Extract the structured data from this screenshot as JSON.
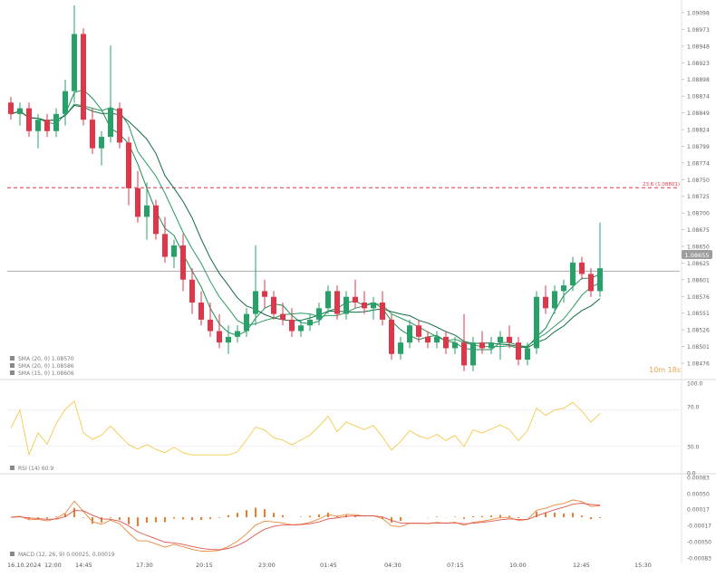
{
  "colors": {
    "up": "#26a269",
    "down": "#e0364a",
    "sma_short": "#1e8f57",
    "sma_mid": "#2a9d62",
    "sma_long": "#146b44",
    "rsi": "#f2c94c",
    "macd_line": "#e9893c",
    "signal_line": "#e0564f",
    "hist": "#f07a28",
    "fib": "#e0364a",
    "current": "#9e9e9e",
    "timer": "#e8a34a"
  },
  "legend": [
    {
      "label": "SMA (20, 0) 1.08570"
    },
    {
      "label": "SMA (20, 0) 1.08586"
    },
    {
      "label": "SMA (15, 0) 1.08606"
    }
  ],
  "fib_label": "23.6 (1.08801)",
  "current_price_label": "1.08655",
  "timer_label": "10m 18s",
  "rsi_legend": "RSI (14) 60.9",
  "macd_legend": "MACD (12, 26, 9) 0.00025, 0.00019",
  "chart_data": [
    {
      "type": "candlestick",
      "ylim": [
        1.0847,
        1.0912
      ],
      "yticks": [
        "1.09098",
        "1.08973",
        "1.08948",
        "1.08923",
        "1.08898",
        "1.08874",
        "1.08849",
        "1.08824",
        "1.08799",
        "1.08774",
        "1.08750",
        "1.08725",
        "1.08700",
        "1.08675",
        "1.08650",
        "1.08625",
        "1.08601",
        "1.08576",
        "1.08551",
        "1.08526",
        "1.08501",
        "1.08476"
      ],
      "fib_level": 1.08801,
      "current_price": 1.08655,
      "candles": [
        [
          1.0895,
          1.0896,
          1.0892,
          1.0893
        ],
        [
          1.0893,
          1.0895,
          1.0891,
          1.0894
        ],
        [
          1.0894,
          1.0895,
          1.0889,
          1.089
        ],
        [
          1.089,
          1.0893,
          1.0887,
          1.0892
        ],
        [
          1.0892,
          1.0893,
          1.0889,
          1.089
        ],
        [
          1.089,
          1.0894,
          1.0889,
          1.0893
        ],
        [
          1.0893,
          1.0899,
          1.0891,
          1.0897
        ],
        [
          1.0897,
          1.0912,
          1.0895,
          1.0907
        ],
        [
          1.0907,
          1.0908,
          1.0891,
          1.0892
        ],
        [
          1.0892,
          1.0894,
          1.0886,
          1.0887
        ],
        [
          1.0887,
          1.089,
          1.0884,
          1.0889
        ],
        [
          1.0889,
          1.0905,
          1.0888,
          1.0894
        ],
        [
          1.0894,
          1.0895,
          1.0887,
          1.0888
        ],
        [
          1.0888,
          1.0889,
          1.0877,
          1.088
        ],
        [
          1.088,
          1.0883,
          1.0874,
          1.0875
        ],
        [
          1.0875,
          1.0881,
          1.0871,
          1.0877
        ],
        [
          1.0877,
          1.0878,
          1.0871,
          1.0872
        ],
        [
          1.0872,
          1.0875,
          1.0867,
          1.0868
        ],
        [
          1.0868,
          1.0871,
          1.0866,
          1.087
        ],
        [
          1.087,
          1.0872,
          1.0862,
          1.0864
        ],
        [
          1.0864,
          1.0866,
          1.0858,
          1.086
        ],
        [
          1.086,
          1.0862,
          1.0856,
          1.0857
        ],
        [
          1.0857,
          1.086,
          1.0854,
          1.0855
        ],
        [
          1.0855,
          1.0858,
          1.0852,
          1.0853
        ],
        [
          1.0853,
          1.0856,
          1.0851,
          1.0854
        ],
        [
          1.0854,
          1.0856,
          1.0853,
          1.0855
        ],
        [
          1.0855,
          1.0859,
          1.0854,
          1.0858
        ],
        [
          1.0858,
          1.087,
          1.0856,
          1.0862
        ],
        [
          1.0862,
          1.0864,
          1.0859,
          1.0861
        ],
        [
          1.0861,
          1.0862,
          1.0857,
          1.0858
        ],
        [
          1.0858,
          1.086,
          1.0856,
          1.0857
        ],
        [
          1.0857,
          1.0859,
          1.0854,
          1.0855
        ],
        [
          1.0855,
          1.0857,
          1.0854,
          1.0856
        ],
        [
          1.0856,
          1.0858,
          1.0855,
          1.0857
        ],
        [
          1.0857,
          1.086,
          1.0856,
          1.0859
        ],
        [
          1.0859,
          1.0863,
          1.0858,
          1.0862
        ],
        [
          1.0862,
          1.0863,
          1.0857,
          1.0858
        ],
        [
          1.0858,
          1.0862,
          1.0857,
          1.0861
        ],
        [
          1.0861,
          1.0864,
          1.0859,
          1.086
        ],
        [
          1.086,
          1.0862,
          1.0858,
          1.0859
        ],
        [
          1.0859,
          1.0861,
          1.0857,
          1.086
        ],
        [
          1.086,
          1.0862,
          1.0856,
          1.0857
        ],
        [
          1.0857,
          1.0858,
          1.085,
          1.0851
        ],
        [
          1.0851,
          1.0854,
          1.085,
          1.0853
        ],
        [
          1.0853,
          1.0857,
          1.0852,
          1.0856
        ],
        [
          1.0856,
          1.0857,
          1.0853,
          1.0854
        ],
        [
          1.0854,
          1.0855,
          1.0852,
          1.0853
        ],
        [
          1.0853,
          1.0855,
          1.0852,
          1.0854
        ],
        [
          1.0854,
          1.0855,
          1.0851,
          1.0852
        ],
        [
          1.0852,
          1.0854,
          1.0851,
          1.0853
        ],
        [
          1.0853,
          1.0858,
          1.0848,
          1.0849
        ],
        [
          1.0849,
          1.0854,
          1.0848,
          1.0853
        ],
        [
          1.0853,
          1.0855,
          1.0851,
          1.0852
        ],
        [
          1.0852,
          1.0854,
          1.0851,
          1.0853
        ],
        [
          1.0853,
          1.0855,
          1.085,
          1.0854
        ],
        [
          1.0854,
          1.0856,
          1.0852,
          1.0853
        ],
        [
          1.0853,
          1.0854,
          1.0849,
          1.085
        ],
        [
          1.085,
          1.0853,
          1.0849,
          1.0852
        ],
        [
          1.0852,
          1.0862,
          1.0851,
          1.0861
        ],
        [
          1.0861,
          1.0863,
          1.0858,
          1.0859
        ],
        [
          1.0859,
          1.0863,
          1.0858,
          1.0862
        ],
        [
          1.0862,
          1.0864,
          1.086,
          1.0863
        ],
        [
          1.0863,
          1.0868,
          1.0862,
          1.0867
        ],
        [
          1.0867,
          1.0868,
          1.0864,
          1.0865
        ],
        [
          1.0865,
          1.0866,
          1.0861,
          1.0862
        ],
        [
          1.0862,
          1.0874,
          1.0861,
          1.0866
        ]
      ]
    },
    {
      "type": "line",
      "name": "RSI",
      "ylim": [
        0,
        100
      ],
      "yticks": [
        "100.0",
        "70.0",
        "30.0",
        "0.0"
      ]
    },
    {
      "type": "line",
      "name": "MACD",
      "ylim": [
        -0.00083,
        0.00083
      ],
      "yticks": [
        "0.00083",
        "0.00050",
        "0.00017",
        "-0.00017",
        "-0.00050",
        "-0.00083"
      ],
      "xticks": [
        "16.10.2024",
        "12:00",
        "14:45",
        "17:30",
        "20:15",
        "23:00",
        "01:45",
        "04:30",
        "07:15",
        "10:00",
        "12:45",
        "15:30"
      ]
    }
  ]
}
